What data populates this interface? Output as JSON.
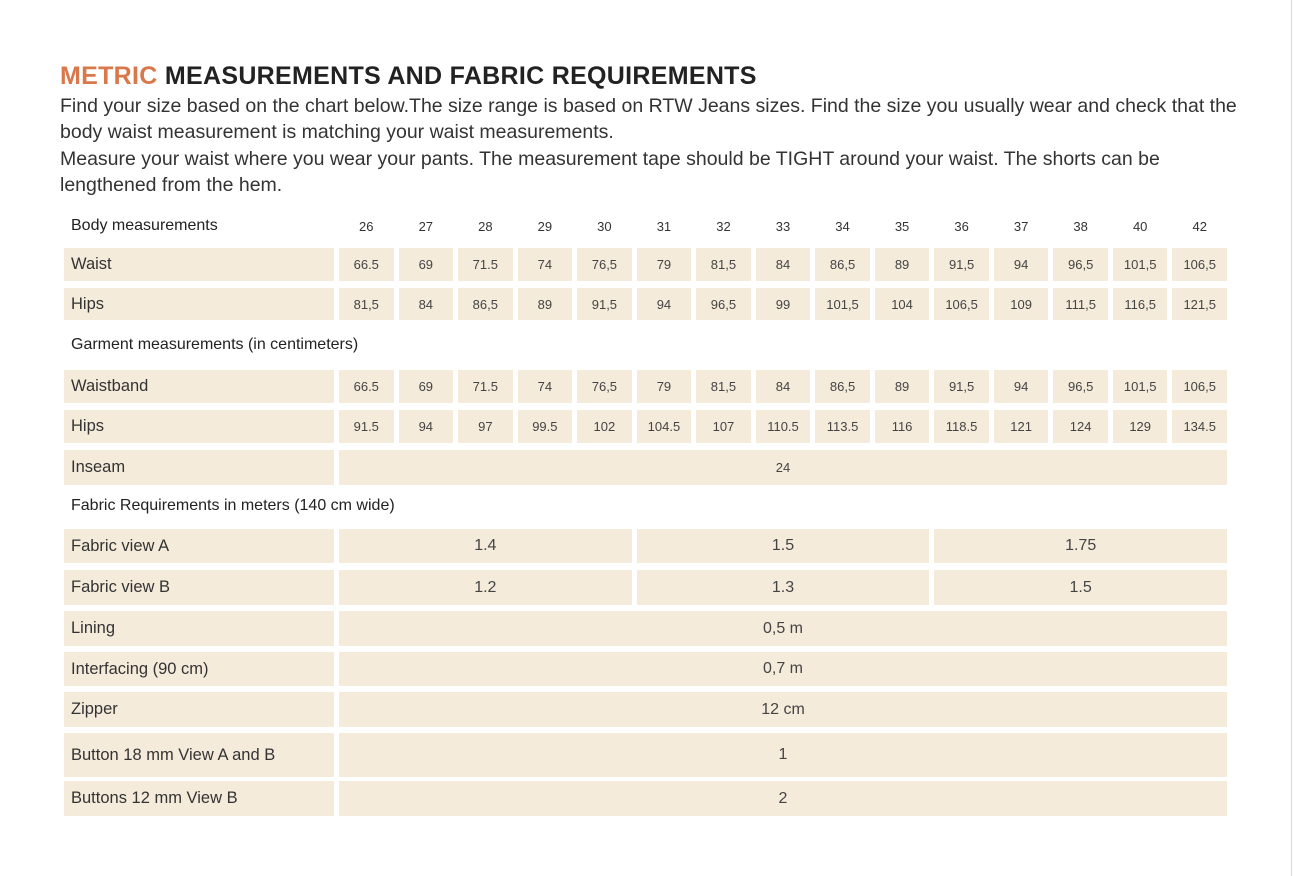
{
  "title": {
    "accent": "METRIC",
    "rest": " MEASUREMENTS AND FABRIC REQUIREMENTS"
  },
  "intro": [
    "Find your size based on the chart below.The size range is based on RTW Jeans sizes. Find the size you usually wear and check that the body waist measurement is matching your waist measurements.",
    "Measure your waist where you wear your pants. The measurement tape should be TIGHT around your waist. The shorts can be lengthened from the hem."
  ],
  "colors": {
    "accent": "#d9784a",
    "cell": "#f5ebdb"
  },
  "table": {
    "sizes": [
      "26",
      "27",
      "28",
      "29",
      "30",
      "31",
      "32",
      "33",
      "34",
      "35",
      "36",
      "37",
      "38",
      "40",
      "42"
    ],
    "rows": [
      {
        "label": "Body measurements",
        "type": "header",
        "cells": [
          "26",
          "27",
          "28",
          "29",
          "30",
          "31",
          "32",
          "33",
          "34",
          "35",
          "36",
          "37",
          "38",
          "40",
          "42"
        ]
      },
      {
        "label": "Waist",
        "type": "fill",
        "cells": [
          "66.5",
          "69",
          "71.5",
          "74",
          "76,5",
          "79",
          "81,5",
          "84",
          "86,5",
          "89",
          "91,5",
          "94",
          "96,5",
          "101,5",
          "106,5"
        ]
      },
      {
        "label": "Hips",
        "type": "fill",
        "cells": [
          "81,5",
          "84",
          "86,5",
          "89",
          "91,5",
          "94",
          "96,5",
          "99",
          "101,5",
          "104",
          "106,5",
          "109",
          "111,5",
          "116,5",
          "121,5"
        ]
      },
      {
        "label": "Garment measurements (in centimeters)",
        "type": "section",
        "cells": []
      },
      {
        "label": "Waistband",
        "type": "fill",
        "cells": [
          "66.5",
          "69",
          "71.5",
          "74",
          "76,5",
          "79",
          "81,5",
          "84",
          "86,5",
          "89",
          "91,5",
          "94",
          "96,5",
          "101,5",
          "106,5"
        ]
      },
      {
        "label": "Hips",
        "type": "fill",
        "cells": [
          "91.5",
          "94",
          "97",
          "99.5",
          "102",
          "104.5",
          "107",
          "110.5",
          "113.5",
          "116",
          "118.5",
          "121",
          "124",
          "129",
          "134.5"
        ]
      },
      {
        "label": "Inseam",
        "type": "fill",
        "span": 15,
        "cells": [
          "24"
        ]
      },
      {
        "label": "Fabric Requirements in meters (140 cm wide)",
        "type": "section",
        "cells": []
      },
      {
        "label": "Fabric view A",
        "type": "fill",
        "span": 5,
        "wide": true,
        "cells": [
          "1.4",
          "1.5",
          "1.75"
        ]
      },
      {
        "label": "Fabric view B",
        "type": "fill",
        "span": 5,
        "wide": true,
        "cells": [
          "1.2",
          "1.3",
          "1.5"
        ]
      },
      {
        "label": "Lining",
        "type": "fill",
        "span": 15,
        "wide": true,
        "cells": [
          "0,5 m"
        ]
      },
      {
        "label": "Interfacing (90 cm)",
        "type": "fill",
        "span": 15,
        "wide": true,
        "cells": [
          "0,7 m"
        ]
      },
      {
        "label": "Zipper",
        "type": "fill",
        "span": 15,
        "wide": true,
        "cells": [
          "12 cm"
        ]
      },
      {
        "label": "Button 18 mm View A and B",
        "type": "fill",
        "span": 15,
        "wide": true,
        "cells": [
          "1"
        ]
      },
      {
        "label": "Buttons 12 mm View B",
        "type": "fill",
        "span": 15,
        "wide": true,
        "cells": [
          "2"
        ]
      }
    ]
  }
}
